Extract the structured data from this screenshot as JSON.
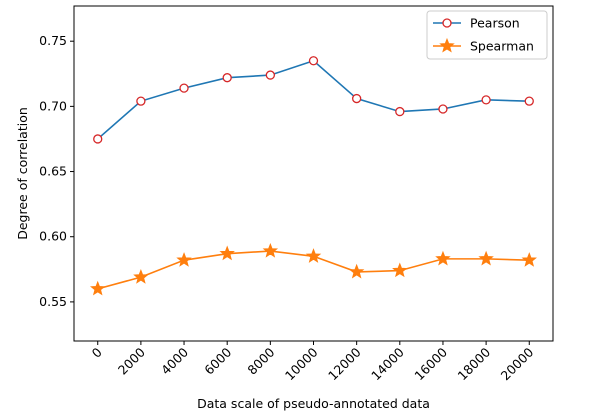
{
  "chart_data": {
    "type": "line",
    "title": "",
    "xlabel": "Data scale of pseudo-annotated data",
    "ylabel": "Degree of correlation",
    "x": [
      0,
      2000,
      4000,
      6000,
      8000,
      10000,
      12000,
      14000,
      16000,
      18000,
      20000
    ],
    "x_tick_labels": [
      "0",
      "2000",
      "4000",
      "6000",
      "8000",
      "10000",
      "12000",
      "14000",
      "16000",
      "18000",
      "20000"
    ],
    "xlim": [
      -1100,
      21100
    ],
    "ylim": [
      0.52,
      0.777
    ],
    "y_ticks": [
      0.55,
      0.6,
      0.65,
      0.7,
      0.75
    ],
    "y_tick_labels": [
      "0.55",
      "0.60",
      "0.65",
      "0.70",
      "0.75"
    ],
    "grid": false,
    "legend_position": "top-right",
    "series": [
      {
        "name": "Pearson",
        "color": "#1f77b4",
        "marker": "circle-open",
        "marker_color": "#d62728",
        "values": [
          0.675,
          0.704,
          0.714,
          0.722,
          0.724,
          0.735,
          0.706,
          0.696,
          0.698,
          0.705,
          0.704
        ]
      },
      {
        "name": "Spearman",
        "color": "#ff7f0e",
        "marker": "star",
        "marker_color": "#ff7f0e",
        "values": [
          0.56,
          0.569,
          0.582,
          0.587,
          0.589,
          0.585,
          0.573,
          0.574,
          0.583,
          0.583,
          0.582
        ]
      }
    ]
  }
}
